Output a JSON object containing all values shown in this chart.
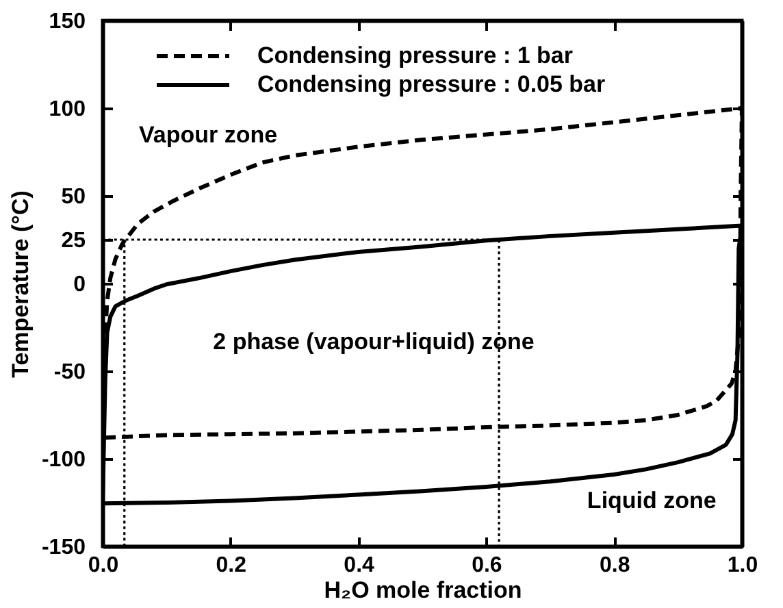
{
  "chart_data": {
    "type": "line",
    "xlabel": "H₂O mole fraction",
    "ylabel": "Temperature (°C)",
    "xlim": [
      0,
      1
    ],
    "ylim": [
      -150,
      150
    ],
    "xticks": [
      {
        "value": 0,
        "label": "0.0"
      },
      {
        "value": 0.2,
        "label": "0.2"
      },
      {
        "value": 0.4,
        "label": "0.4"
      },
      {
        "value": 0.6,
        "label": "0.6"
      },
      {
        "value": 0.8,
        "label": "0.8"
      },
      {
        "value": 1,
        "label": "1.0"
      }
    ],
    "yticks": [
      -150,
      -100,
      -50,
      0,
      25,
      50,
      100,
      150
    ],
    "legend": "top left",
    "series": [
      {
        "name": "Condensing pressure : 1 bar",
        "color": "#000000",
        "line_style": "dashed",
        "x": [
          0,
          0.002,
          0.004,
          0.007,
          0.012,
          0.02,
          0.03,
          0.035,
          0.04,
          0.055,
          0.08,
          0.11,
          0.15,
          0.2,
          0.25,
          0.3,
          0.4,
          0.5,
          0.6,
          0.7,
          0.8,
          0.9,
          0.95,
          1.0,
          0.998,
          0.997,
          0.995,
          0.99,
          0.984,
          0.96,
          0.945,
          0.9,
          0.85,
          0.8,
          0.7,
          0.6,
          0.5,
          0.4,
          0.3,
          0.2,
          0.1,
          0
        ],
        "values": [
          -87,
          -60,
          -30,
          -10,
          3,
          14,
          22,
          25,
          27,
          34,
          41,
          47,
          54,
          62,
          69,
          73,
          78,
          82,
          85,
          88,
          92,
          96,
          98,
          100,
          50,
          0,
          -30,
          -50,
          -57,
          -67,
          -70,
          -75,
          -78,
          -79.5,
          -81,
          -82,
          -83.5,
          -84.5,
          -85.5,
          -86,
          -86.5,
          -88
        ]
      },
      {
        "name": "Condensing pressure : 0.05 bar",
        "color": "#000000",
        "line_style": "solid",
        "x": [
          0,
          0.002,
          0.004,
          0.007,
          0.012,
          0.02,
          0.035,
          0.055,
          0.08,
          0.1,
          0.15,
          0.2,
          0.25,
          0.3,
          0.4,
          0.5,
          0.6,
          0.62,
          0.7,
          0.8,
          0.9,
          1.0,
          0.995,
          0.993,
          0.99,
          0.985,
          0.975,
          0.95,
          0.9,
          0.85,
          0.8,
          0.7,
          0.6,
          0.5,
          0.4,
          0.3,
          0.2,
          0.1,
          0
        ],
        "values": [
          -125,
          -90,
          -55,
          -28,
          -19,
          -13,
          -10,
          -7,
          -3,
          -0.5,
          3,
          7,
          10.5,
          13.5,
          18,
          21,
          24.5,
          25,
          27,
          29,
          31,
          33,
          20,
          -40,
          -78,
          -86,
          -92,
          -97,
          -102,
          -106,
          -109,
          -113,
          -116,
          -118.5,
          -120.5,
          -122.5,
          -124,
          -125,
          -125.5
        ]
      },
      {
        "color": "#000000",
        "line_style": "dotted",
        "x": [
          0.034,
          0.034
        ],
        "values": [
          -150,
          25
        ]
      },
      {
        "color": "#000000",
        "line_style": "dotted",
        "x": [
          0,
          0.62,
          0.62
        ],
        "values": [
          25,
          25,
          -150
        ]
      }
    ],
    "annotations": [
      "Vapour zone",
      "2 phase (vapour+liquid) zone",
      "Liquid zone"
    ]
  }
}
